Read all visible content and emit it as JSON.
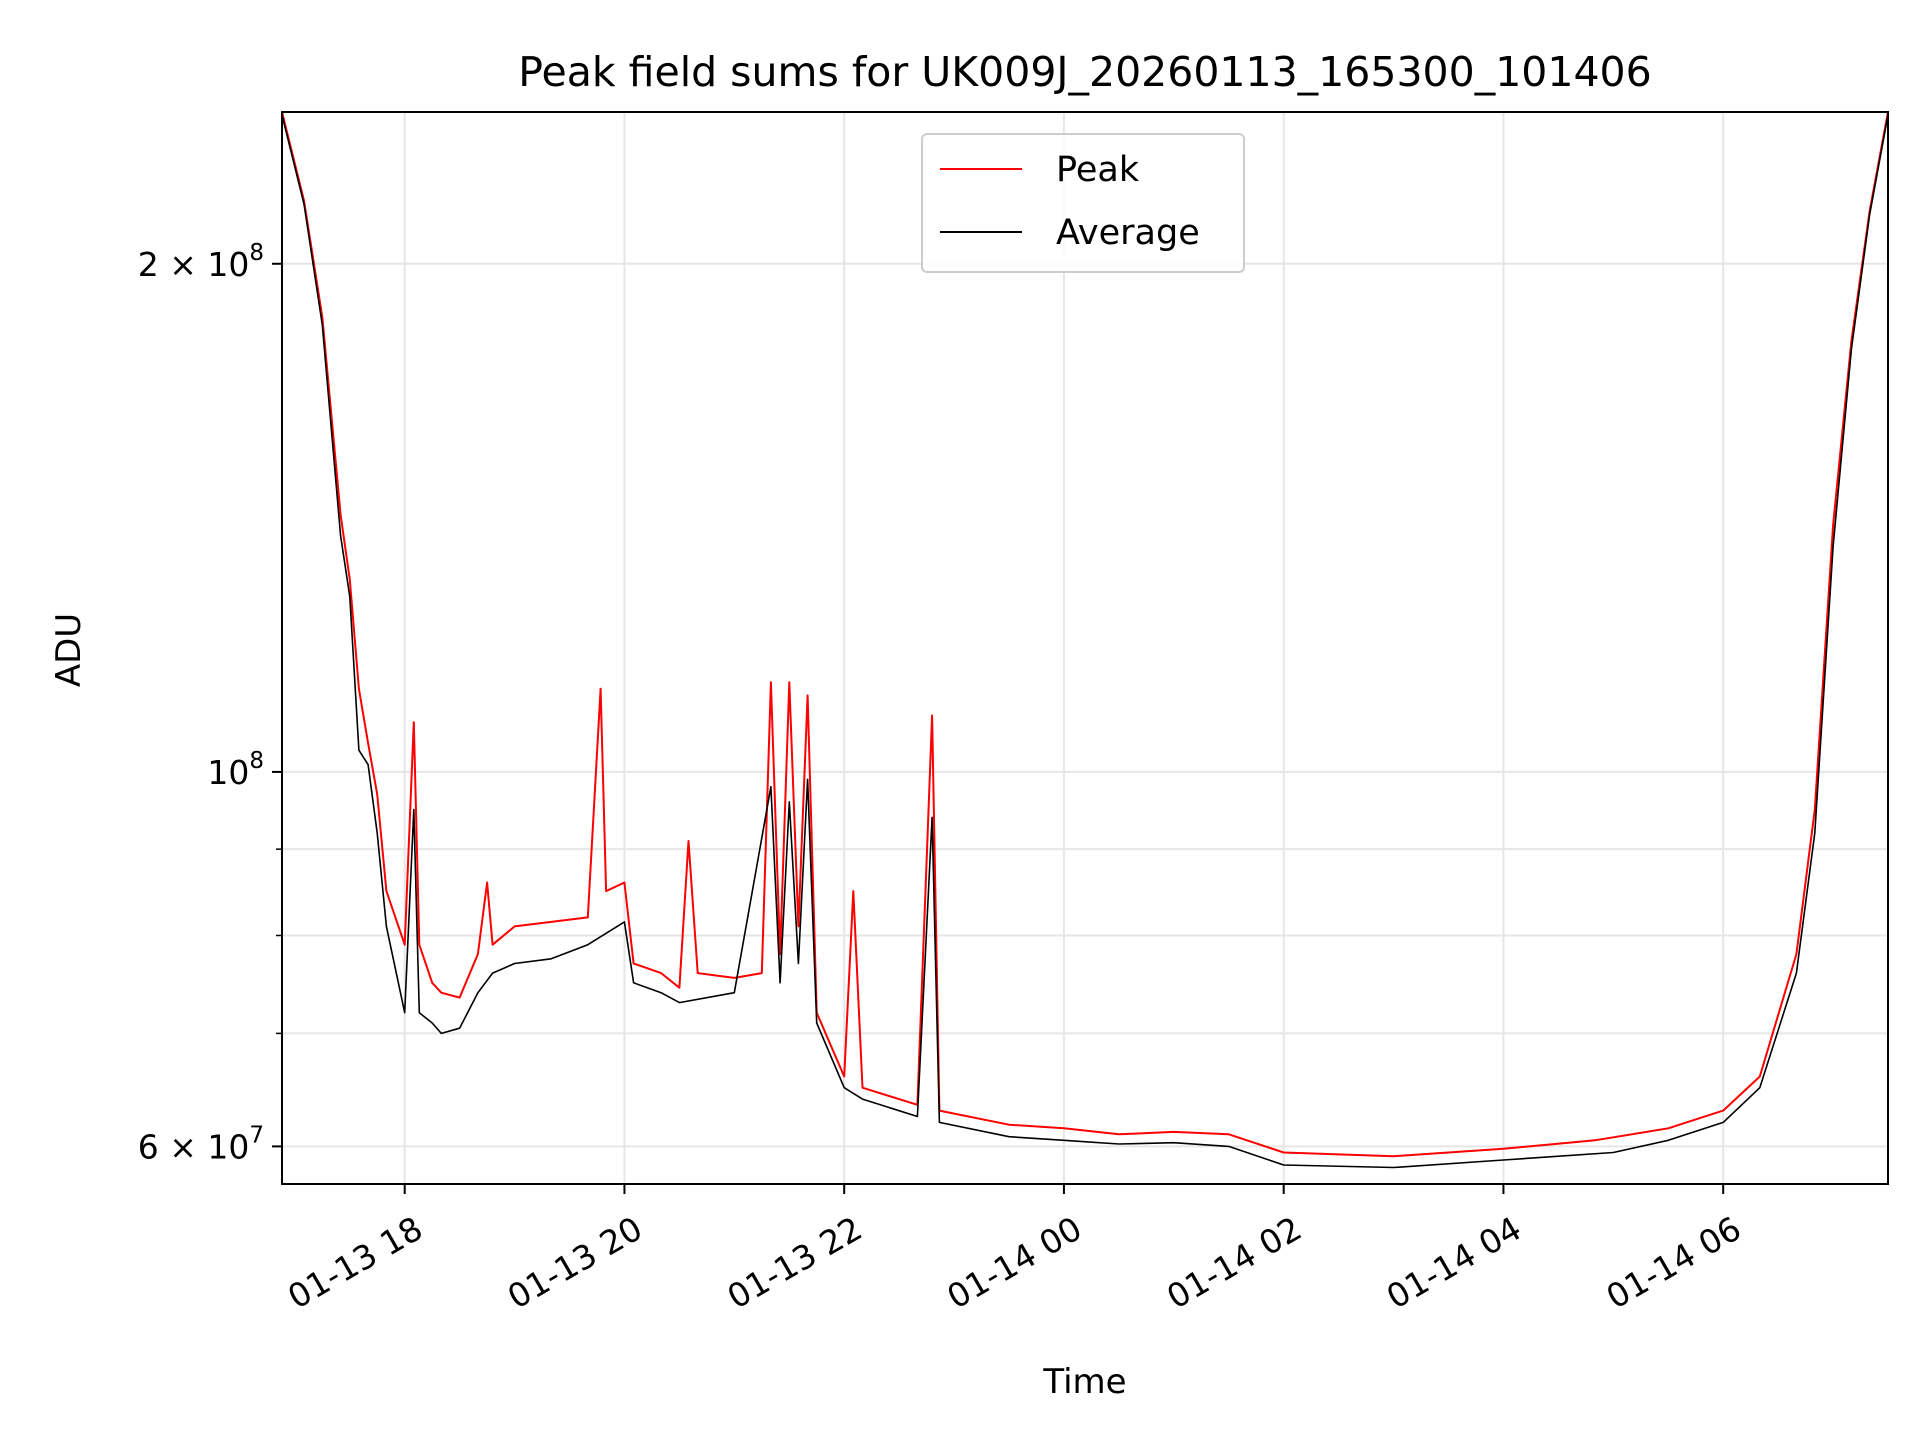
{
  "chart_data": {
    "type": "line",
    "title": "Peak field sums for UK009J_20260113_165300_101406",
    "xlabel": "Time",
    "ylabel": "ADU",
    "yscale": "log",
    "grid": true,
    "legend_position": "top-center",
    "xlim": [
      "2026-01-13 16:53",
      "2026-01-14 07:30"
    ],
    "ylim": [
      57000000,
      246000000
    ],
    "x_ticks": [
      {
        "value": "2026-01-13 18:00",
        "label": "01-13 18"
      },
      {
        "value": "2026-01-13 20:00",
        "label": "01-13 20"
      },
      {
        "value": "2026-01-13 22:00",
        "label": "01-13 22"
      },
      {
        "value": "2026-01-14 00:00",
        "label": "01-14 00"
      },
      {
        "value": "2026-01-14 02:00",
        "label": "01-14 02"
      },
      {
        "value": "2026-01-14 04:00",
        "label": "01-14 04"
      },
      {
        "value": "2026-01-14 06:00",
        "label": "01-14 06"
      }
    ],
    "y_major_ticks": [
      {
        "value": 60000000,
        "label_base": "6 × 10",
        "label_exp": "7"
      },
      {
        "value": 100000000,
        "label_base": "10",
        "label_exp": "8"
      },
      {
        "value": 200000000,
        "label_base": "2 × 10",
        "label_exp": "8"
      }
    ],
    "y_minor_ticks": [
      70000000,
      80000000,
      90000000
    ],
    "series": [
      {
        "name": "Peak",
        "color": "#ff0000",
        "points": [
          [
            "2026-01-13 16:53",
            246000000
          ],
          [
            "2026-01-13 17:05",
            218000000
          ],
          [
            "2026-01-13 17:15",
            186000000
          ],
          [
            "2026-01-13 17:25",
            142000000
          ],
          [
            "2026-01-13 17:30",
            130000000
          ],
          [
            "2026-01-13 17:35",
            112000000
          ],
          [
            "2026-01-13 17:40",
            104000000
          ],
          [
            "2026-01-13 17:45",
            97000000
          ],
          [
            "2026-01-13 17:50",
            85000000
          ],
          [
            "2026-01-13 18:00",
            79000000
          ],
          [
            "2026-01-13 18:05",
            107000000
          ],
          [
            "2026-01-13 18:08",
            79000000
          ],
          [
            "2026-01-13 18:15",
            75000000
          ],
          [
            "2026-01-13 18:20",
            74000000
          ],
          [
            "2026-01-13 18:30",
            73500000
          ],
          [
            "2026-01-13 18:40",
            78000000
          ],
          [
            "2026-01-13 18:45",
            86000000
          ],
          [
            "2026-01-13 18:48",
            79000000
          ],
          [
            "2026-01-13 19:00",
            81000000
          ],
          [
            "2026-01-13 19:20",
            81500000
          ],
          [
            "2026-01-13 19:40",
            82000000
          ],
          [
            "2026-01-13 19:47",
            112000000
          ],
          [
            "2026-01-13 19:50",
            85000000
          ],
          [
            "2026-01-13 20:00",
            86000000
          ],
          [
            "2026-01-13 20:05",
            77000000
          ],
          [
            "2026-01-13 20:20",
            76000000
          ],
          [
            "2026-01-13 20:30",
            74500000
          ],
          [
            "2026-01-13 20:35",
            91000000
          ],
          [
            "2026-01-13 20:40",
            76000000
          ],
          [
            "2026-01-13 21:00",
            75500000
          ],
          [
            "2026-01-13 21:15",
            76000000
          ],
          [
            "2026-01-13 21:20",
            113000000
          ],
          [
            "2026-01-13 21:25",
            78000000
          ],
          [
            "2026-01-13 21:30",
            113000000
          ],
          [
            "2026-01-13 21:35",
            81000000
          ],
          [
            "2026-01-13 21:40",
            111000000
          ],
          [
            "2026-01-13 21:45",
            72000000
          ],
          [
            "2026-01-13 22:00",
            66000000
          ],
          [
            "2026-01-13 22:05",
            85000000
          ],
          [
            "2026-01-13 22:10",
            65000000
          ],
          [
            "2026-01-13 22:40",
            63500000
          ],
          [
            "2026-01-13 22:48",
            108000000
          ],
          [
            "2026-01-13 22:52",
            63000000
          ],
          [
            "2026-01-13 23:30",
            61800000
          ],
          [
            "2026-01-14 00:00",
            61500000
          ],
          [
            "2026-01-14 00:30",
            61000000
          ],
          [
            "2026-01-14 01:00",
            61200000
          ],
          [
            "2026-01-14 01:30",
            61000000
          ],
          [
            "2026-01-14 02:00",
            59500000
          ],
          [
            "2026-01-14 03:00",
            59200000
          ],
          [
            "2026-01-14 04:00",
            59800000
          ],
          [
            "2026-01-14 04:50",
            60500000
          ],
          [
            "2026-01-14 05:30",
            61500000
          ],
          [
            "2026-01-14 06:00",
            63000000
          ],
          [
            "2026-01-14 06:20",
            66000000
          ],
          [
            "2026-01-14 06:40",
            78000000
          ],
          [
            "2026-01-14 06:50",
            95000000
          ],
          [
            "2026-01-14 07:00",
            140000000
          ],
          [
            "2026-01-14 07:10",
            180000000
          ],
          [
            "2026-01-14 07:20",
            215000000
          ],
          [
            "2026-01-14 07:30",
            246000000
          ]
        ]
      },
      {
        "name": "Average",
        "color": "#000000",
        "points": [
          [
            "2026-01-13 16:53",
            245000000
          ],
          [
            "2026-01-13 17:05",
            217000000
          ],
          [
            "2026-01-13 17:15",
            184000000
          ],
          [
            "2026-01-13 17:25",
            138000000
          ],
          [
            "2026-01-13 17:30",
            127000000
          ],
          [
            "2026-01-13 17:35",
            103000000
          ],
          [
            "2026-01-13 17:40",
            101000000
          ],
          [
            "2026-01-13 17:45",
            92000000
          ],
          [
            "2026-01-13 17:50",
            81000000
          ],
          [
            "2026-01-13 18:00",
            72000000
          ],
          [
            "2026-01-13 18:05",
            95000000
          ],
          [
            "2026-01-13 18:08",
            72000000
          ],
          [
            "2026-01-13 18:15",
            71000000
          ],
          [
            "2026-01-13 18:20",
            70000000
          ],
          [
            "2026-01-13 18:30",
            70500000
          ],
          [
            "2026-01-13 18:40",
            74000000
          ],
          [
            "2026-01-13 18:48",
            76000000
          ],
          [
            "2026-01-13 19:00",
            77000000
          ],
          [
            "2026-01-13 19:20",
            77500000
          ],
          [
            "2026-01-13 19:40",
            79000000
          ],
          [
            "2026-01-13 20:00",
            81500000
          ],
          [
            "2026-01-13 20:05",
            75000000
          ],
          [
            "2026-01-13 20:20",
            74000000
          ],
          [
            "2026-01-13 20:30",
            73000000
          ],
          [
            "2026-01-13 21:00",
            74000000
          ],
          [
            "2026-01-13 21:20",
            98000000
          ],
          [
            "2026-01-13 21:25",
            75000000
          ],
          [
            "2026-01-13 21:30",
            96000000
          ],
          [
            "2026-01-13 21:35",
            77000000
          ],
          [
            "2026-01-13 21:40",
            99000000
          ],
          [
            "2026-01-13 21:45",
            71000000
          ],
          [
            "2026-01-13 22:00",
            65000000
          ],
          [
            "2026-01-13 22:10",
            64000000
          ],
          [
            "2026-01-13 22:40",
            62500000
          ],
          [
            "2026-01-13 22:48",
            94000000
          ],
          [
            "2026-01-13 22:52",
            62000000
          ],
          [
            "2026-01-13 23:30",
            60800000
          ],
          [
            "2026-01-14 00:00",
            60500000
          ],
          [
            "2026-01-14 00:30",
            60200000
          ],
          [
            "2026-01-14 01:00",
            60300000
          ],
          [
            "2026-01-14 01:30",
            60000000
          ],
          [
            "2026-01-14 02:00",
            58500000
          ],
          [
            "2026-01-14 03:00",
            58300000
          ],
          [
            "2026-01-14 04:00",
            58900000
          ],
          [
            "2026-01-14 05:00",
            59500000
          ],
          [
            "2026-01-14 05:30",
            60500000
          ],
          [
            "2026-01-14 06:00",
            62000000
          ],
          [
            "2026-01-14 06:20",
            65000000
          ],
          [
            "2026-01-14 06:40",
            76000000
          ],
          [
            "2026-01-14 06:50",
            92000000
          ],
          [
            "2026-01-14 07:00",
            136000000
          ],
          [
            "2026-01-14 07:10",
            178000000
          ],
          [
            "2026-01-14 07:20",
            214000000
          ],
          [
            "2026-01-14 07:30",
            245000000
          ]
        ]
      }
    ]
  }
}
